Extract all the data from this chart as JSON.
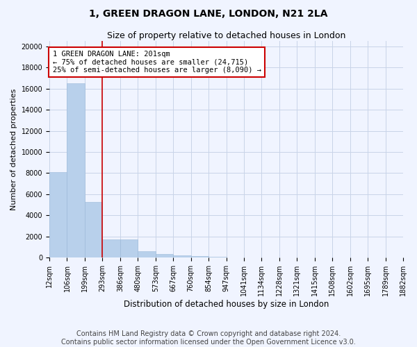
{
  "title": "1, GREEN DRAGON LANE, LONDON, N21 2LA",
  "subtitle": "Size of property relative to detached houses in London",
  "xlabel": "Distribution of detached houses by size in London",
  "ylabel": "Number of detached properties",
  "bar_values": [
    8100,
    16500,
    5300,
    1750,
    1750,
    620,
    320,
    200,
    150,
    100,
    0,
    0,
    0,
    0,
    0,
    0,
    0,
    0,
    0,
    0
  ],
  "x_labels": [
    "12sqm",
    "106sqm",
    "199sqm",
    "293sqm",
    "386sqm",
    "480sqm",
    "573sqm",
    "667sqm",
    "760sqm",
    "854sqm",
    "947sqm",
    "1041sqm",
    "1134sqm",
    "1228sqm",
    "1321sqm",
    "1415sqm",
    "1508sqm",
    "1602sqm",
    "1695sqm",
    "1789sqm",
    "1882sqm"
  ],
  "bar_color": "#b8d0eb",
  "bar_edge_color": "#9ab8d8",
  "grid_color": "#c8d4e8",
  "vline_x_index": 2,
  "vline_color": "#cc0000",
  "annotation_line1": "1 GREEN DRAGON LANE: 201sqm",
  "annotation_line2": "← 75% of detached houses are smaller (24,715)",
  "annotation_line3": "25% of semi-detached houses are larger (8,090) →",
  "annotation_box_color": "#cc0000",
  "annotation_box_fill": "#ffffff",
  "ylim": [
    0,
    20500
  ],
  "yticks": [
    0,
    2000,
    4000,
    6000,
    8000,
    10000,
    12000,
    14000,
    16000,
    18000,
    20000
  ],
  "footer_line1": "Contains HM Land Registry data © Crown copyright and database right 2024.",
  "footer_line2": "Contains public sector information licensed under the Open Government Licence v3.0.",
  "background_color": "#f0f4ff",
  "title_fontsize": 10,
  "subtitle_fontsize": 9,
  "tick_fontsize": 7,
  "ylabel_fontsize": 8,
  "xlabel_fontsize": 8.5,
  "footer_fontsize": 7,
  "annotation_fontsize": 7.5
}
